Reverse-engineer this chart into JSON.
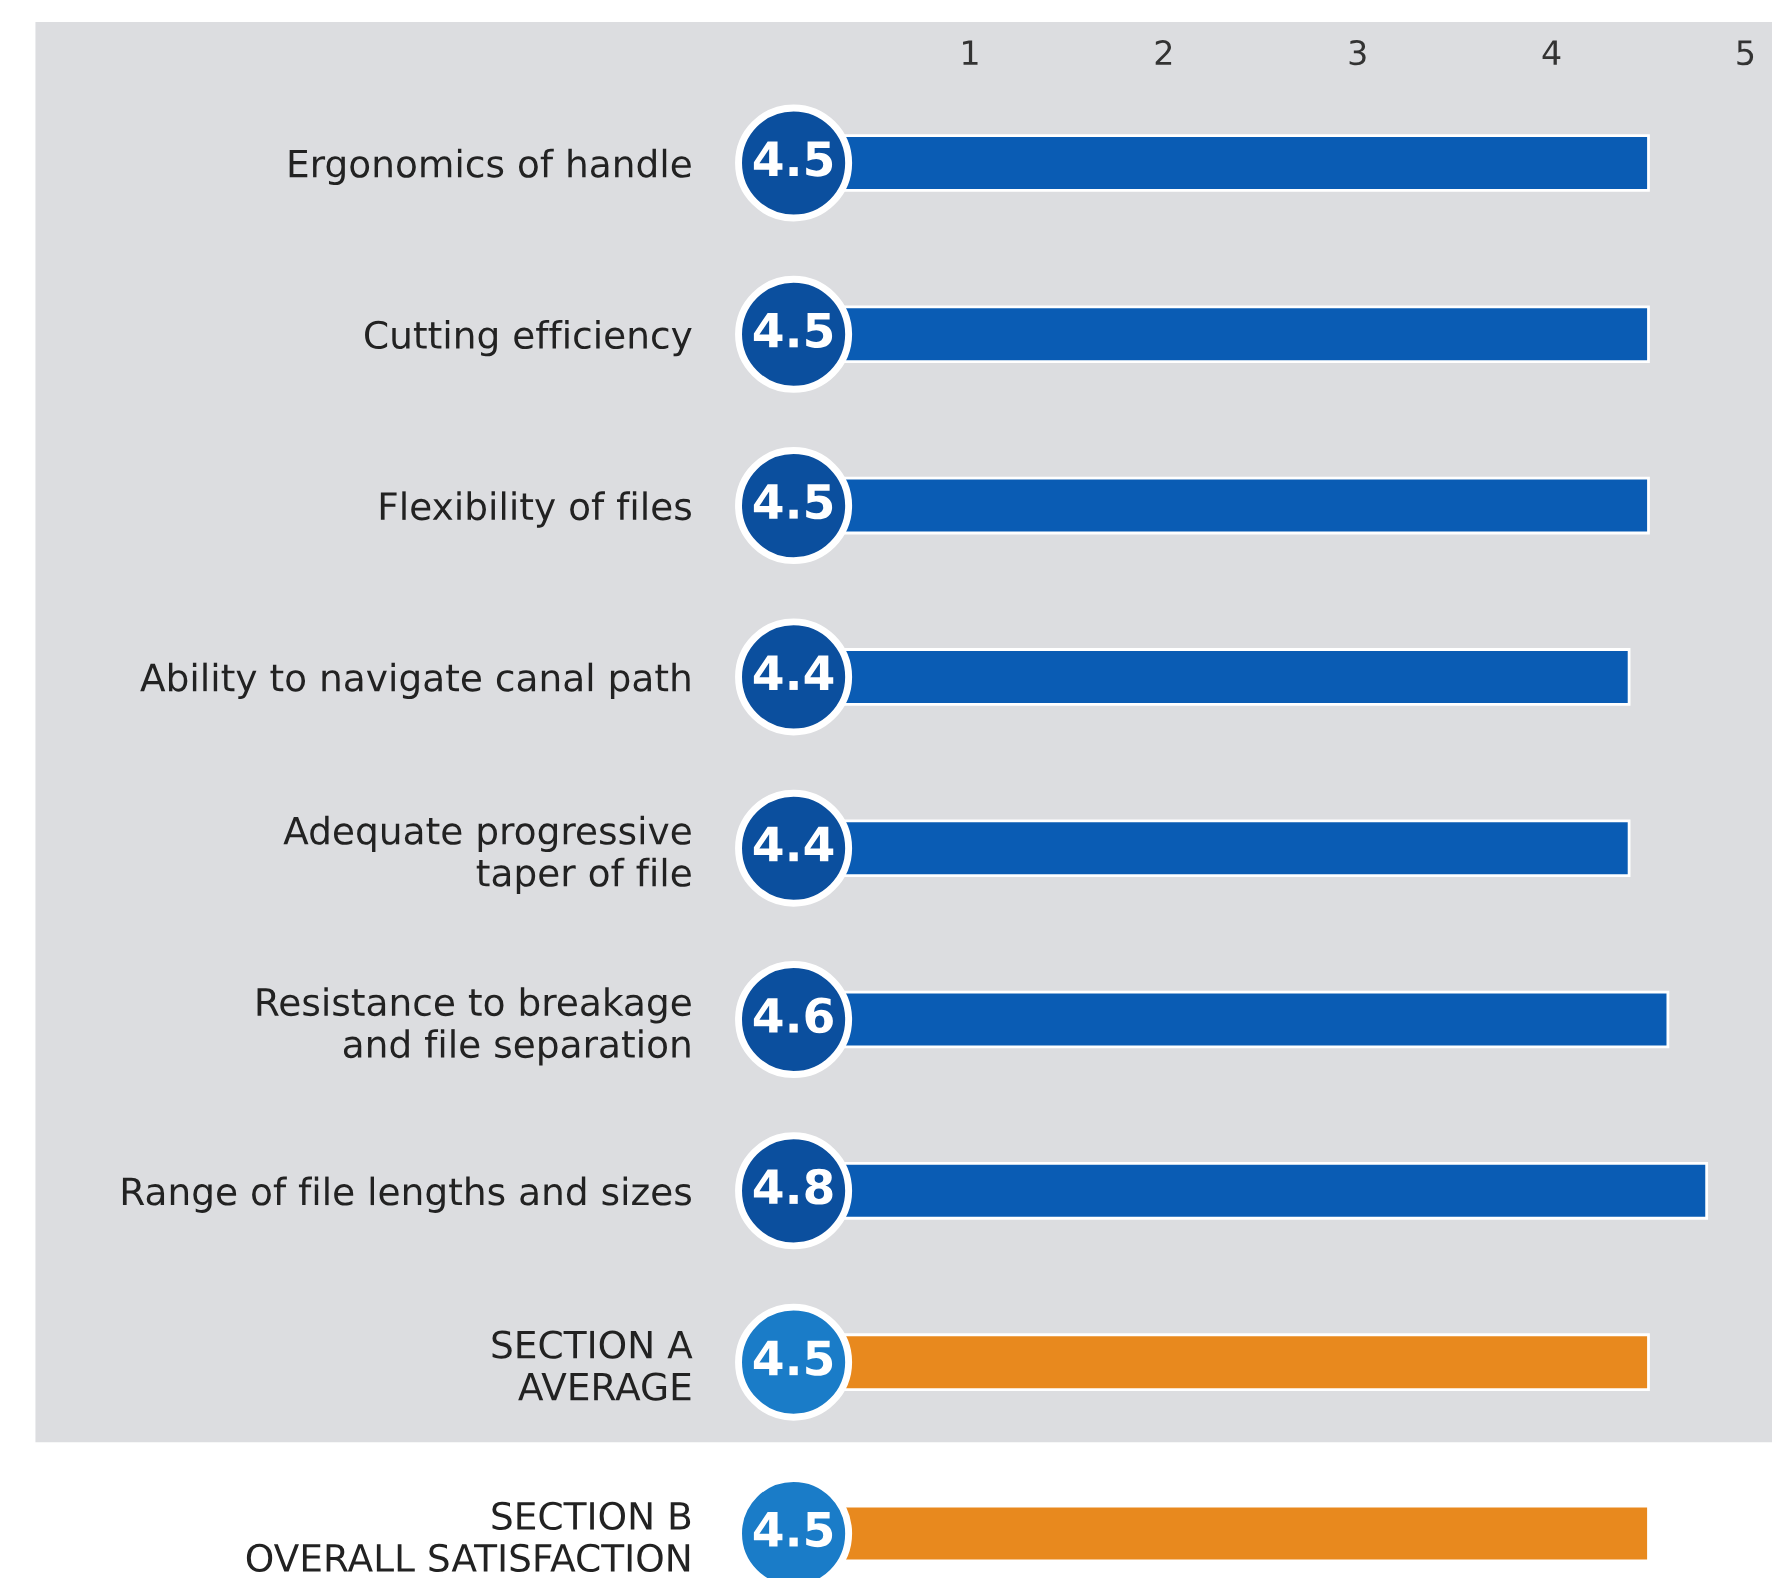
{
  "chart_data": {
    "type": "bar",
    "orientation": "horizontal",
    "categories": [
      "Ergonomics of handle",
      "Cutting efficiency",
      "Flexibility of files",
      "Ability to navigate canal path",
      "Adequate progressive\ntaper of file",
      "Resistance to breakage\nand file separation",
      "Range of file lengths and sizes",
      "SECTION A\nAVERAGE",
      "SECTION B\nOVERALL SATISFACTION"
    ],
    "values": [
      4.5,
      4.5,
      4.5,
      4.4,
      4.4,
      4.6,
      4.8,
      4.5,
      4.5
    ],
    "colors": [
      "#0a5cb4",
      "#0a5cb4",
      "#0a5cb4",
      "#0a5cb4",
      "#0a5cb4",
      "#0a5cb4",
      "#0a5cb4",
      "#e8891e",
      "#e8891e"
    ],
    "xlim": [
      0,
      5
    ],
    "xticks": [
      1,
      2,
      3,
      4,
      5
    ],
    "data_labels": true,
    "grid": false
  }
}
